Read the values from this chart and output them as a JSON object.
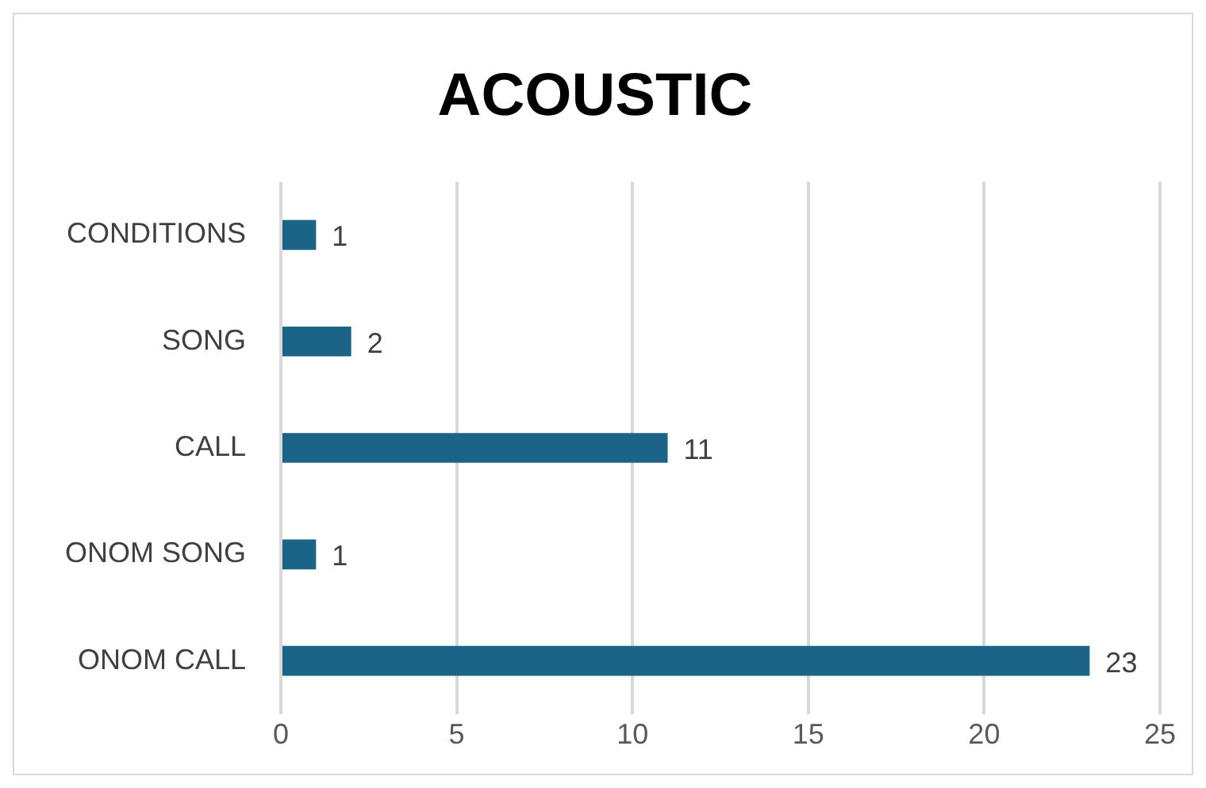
{
  "chart_data": {
    "type": "bar",
    "orientation": "horizontal",
    "title": "ACOUSTIC",
    "categories": [
      "CONDITIONS",
      "SONG",
      "CALL",
      "ONOM SONG",
      "ONOM CALL"
    ],
    "values": [
      1,
      2,
      11,
      1,
      23
    ],
    "color": "#1b6488",
    "xlim": [
      0,
      25
    ],
    "xticks": [
      0,
      5,
      10,
      15,
      20,
      25
    ],
    "grid": "x",
    "data_labels": true,
    "legend": false
  }
}
